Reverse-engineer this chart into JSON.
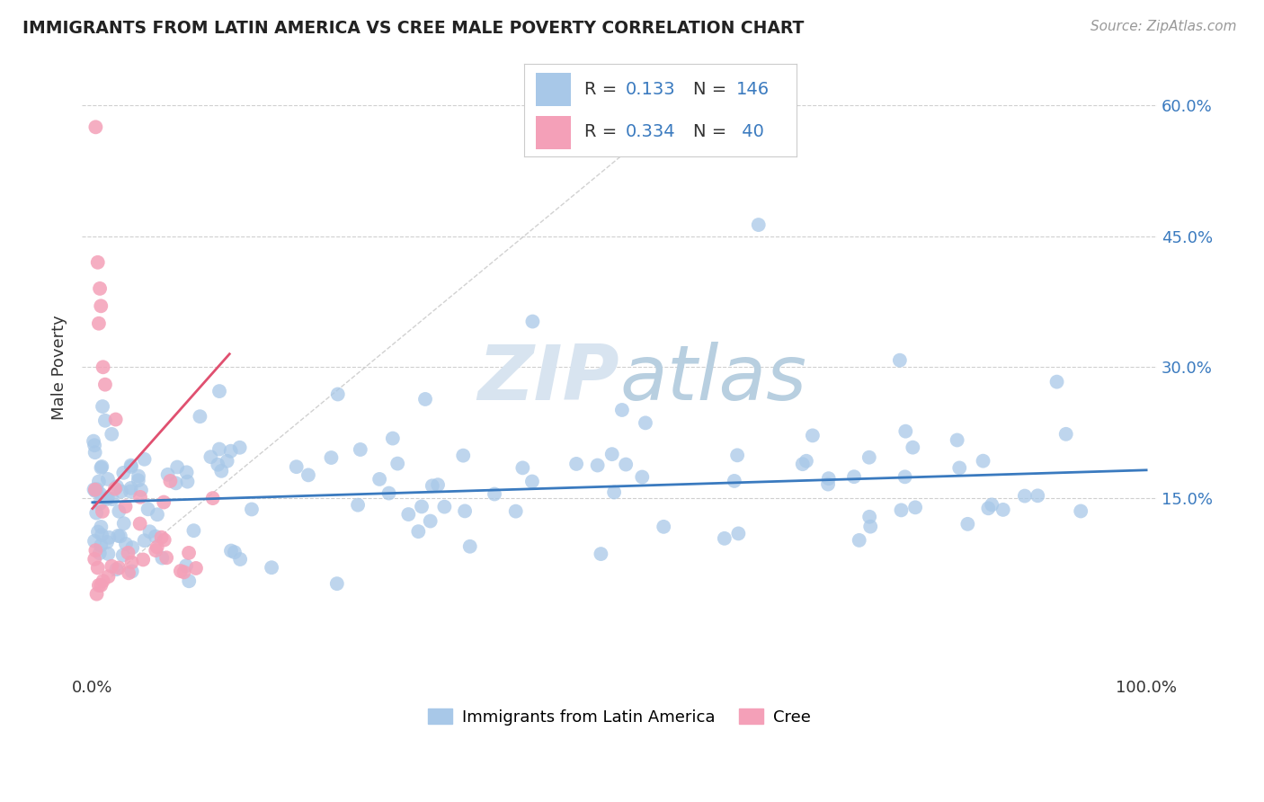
{
  "title": "IMMIGRANTS FROM LATIN AMERICA VS CREE MALE POVERTY CORRELATION CHART",
  "source": "Source: ZipAtlas.com",
  "ylabel": "Male Poverty",
  "xlim": [
    0.0,
    1.0
  ],
  "ylim": [
    -0.05,
    0.65
  ],
  "blue_R": "0.133",
  "blue_N": "146",
  "pink_R": "0.334",
  "pink_N": "40",
  "blue_color": "#a8c8e8",
  "pink_color": "#f4a0b8",
  "blue_line_color": "#3a7abf",
  "pink_line_color": "#e05070",
  "diag_color": "#cccccc",
  "background_color": "#ffffff",
  "watermark_color": "#d8e4f0",
  "ytick_vals": [
    0.15,
    0.3,
    0.45,
    0.6
  ],
  "ytick_labels": [
    "15.0%",
    "30.0%",
    "45.0%",
    "60.0%"
  ]
}
